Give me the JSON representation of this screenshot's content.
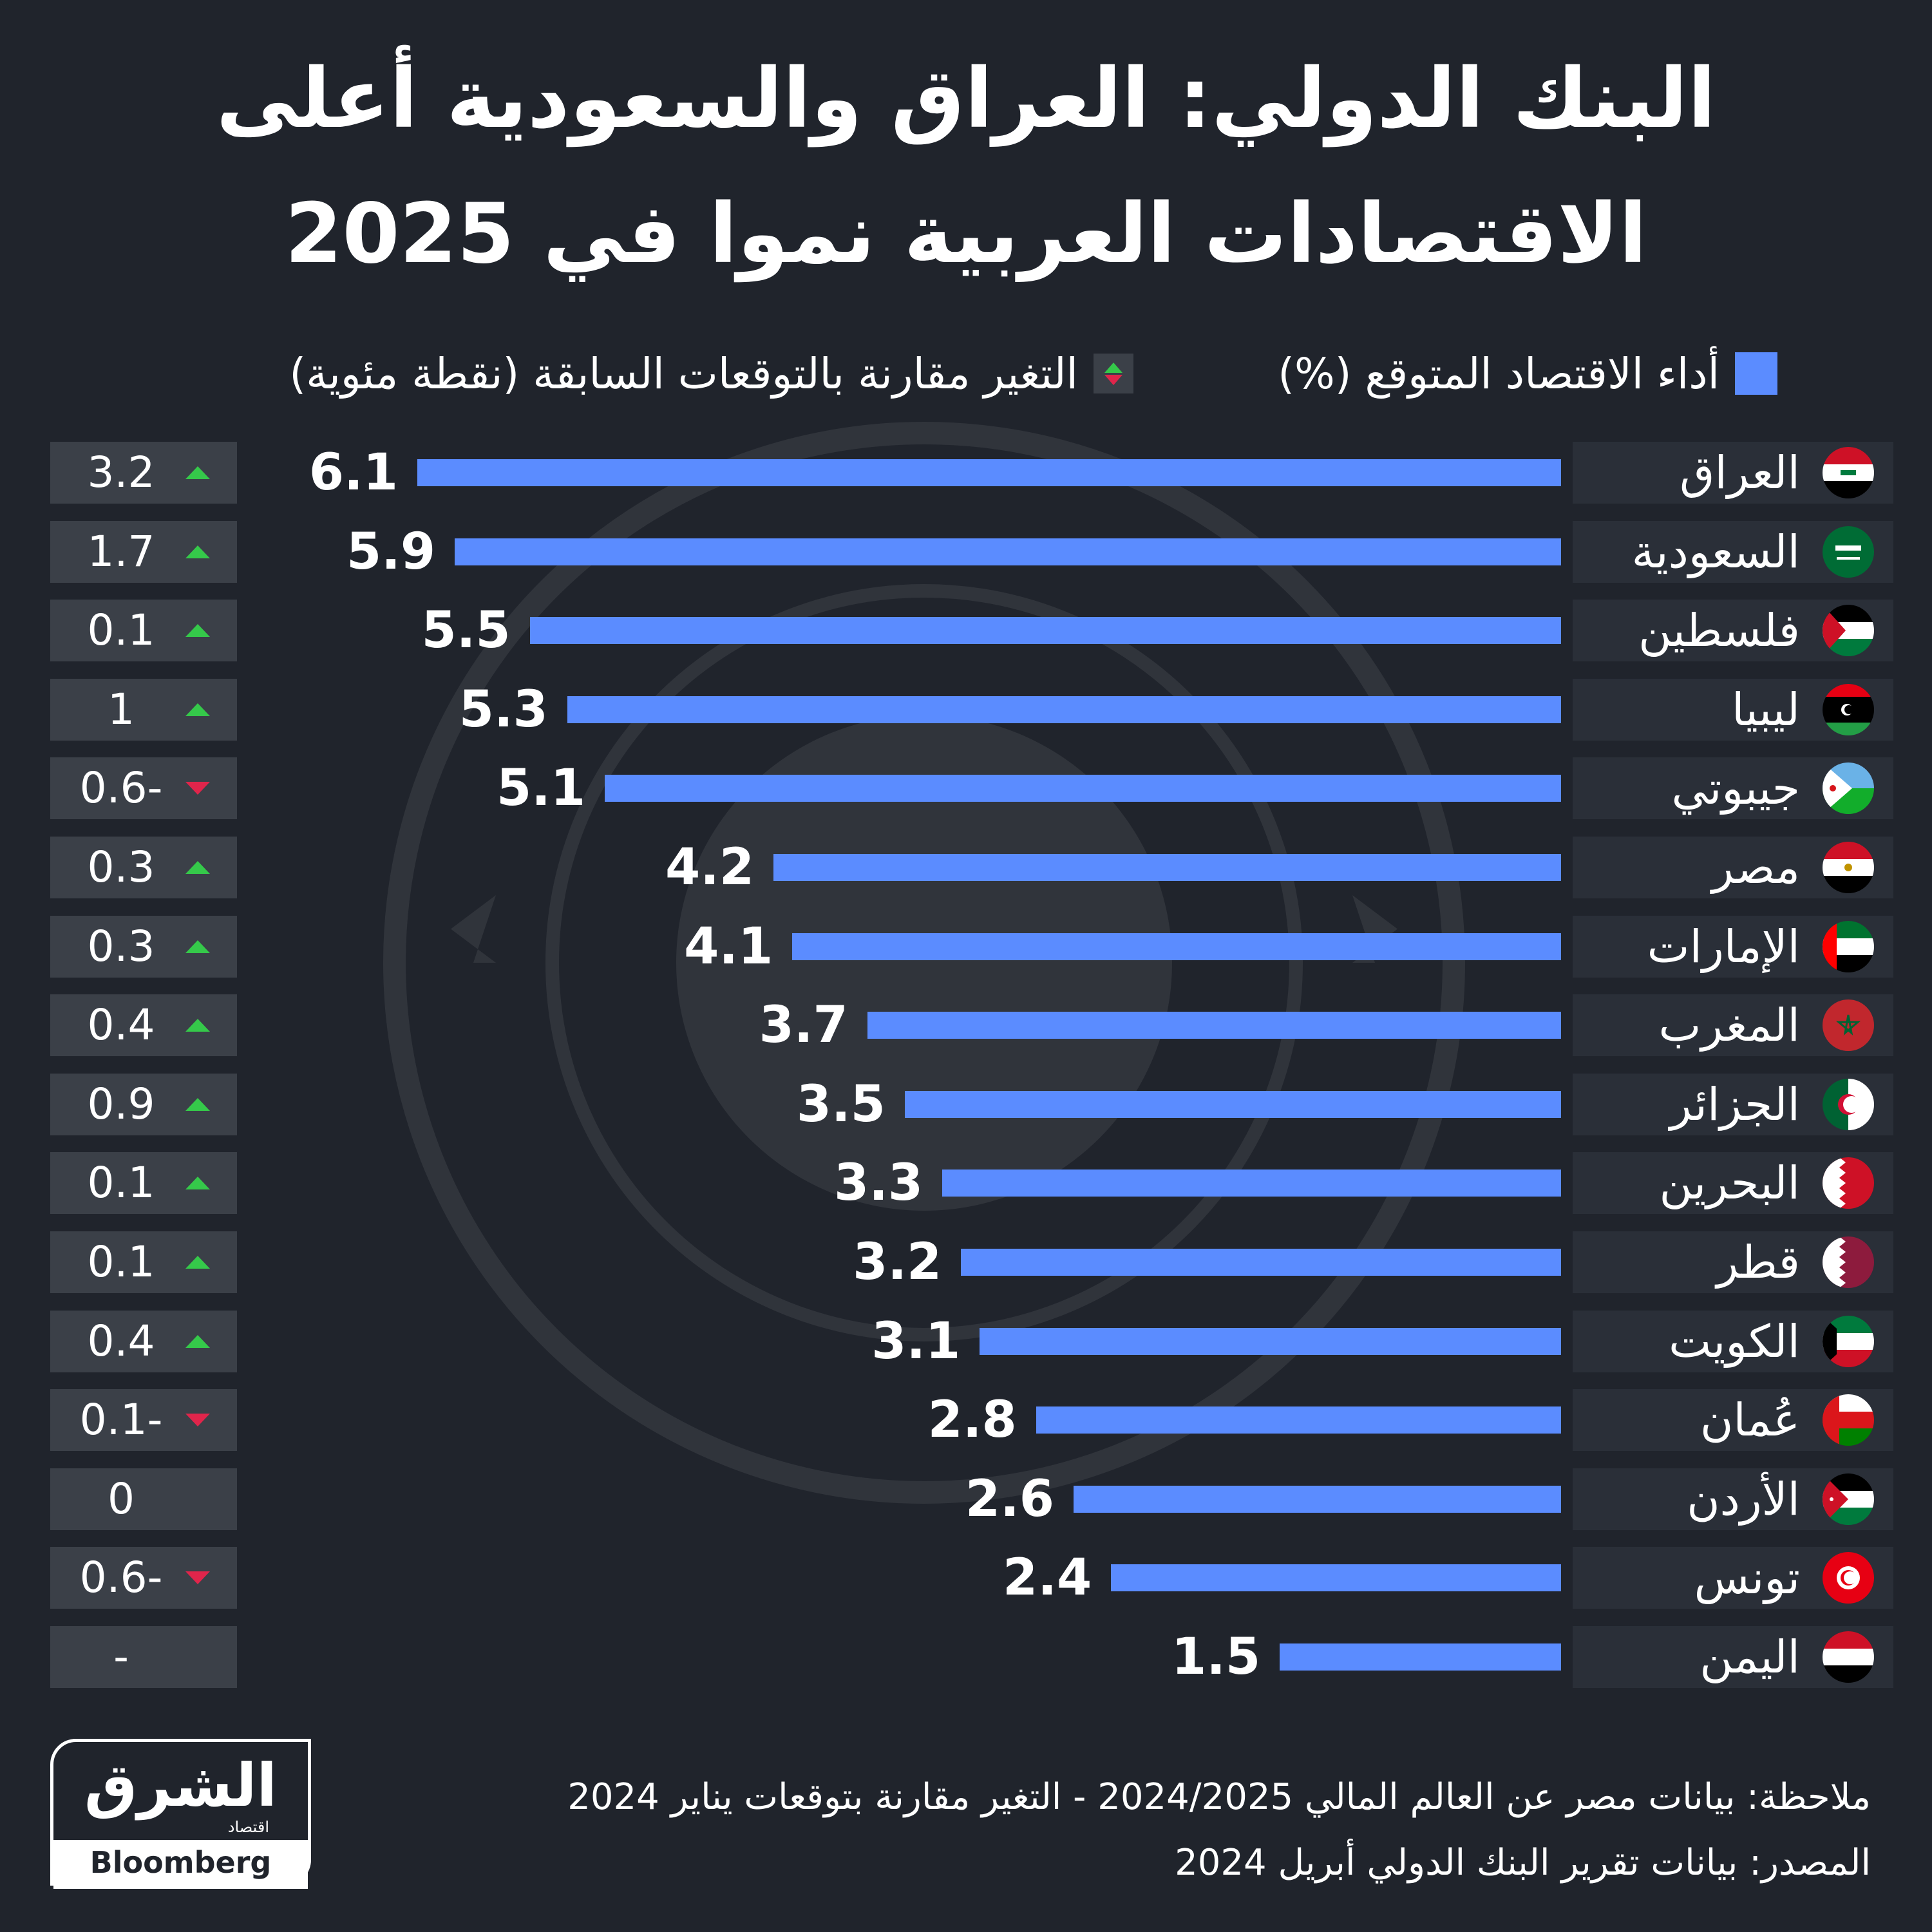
{
  "title": {
    "line1": "البنك الدولي: العراق والسعودية أعلى",
    "line2": "الاقتصادات العربية نموا في 2025"
  },
  "legend": {
    "growth_label": "أداء الاقتصاد المتوقع (%)",
    "change_label": "التغير مقارنة بالتوقعات السابقة (نقطة مئوية)",
    "bar_color": "#5b8cff",
    "up_color": "#35c94a",
    "down_color": "#e0254b"
  },
  "chart_data": {
    "type": "bar",
    "orientation": "horizontal",
    "categories": [
      "العراق",
      "السعودية",
      "فلسطين",
      "ليبيا",
      "جيبوتي",
      "مصر",
      "الإمارات",
      "المغرب",
      "الجزائر",
      "البحرين",
      "قطر",
      "الكويت",
      "عُمان",
      "الأردن",
      "تونس",
      "اليمن"
    ],
    "series": [
      {
        "name": "أداء الاقتصاد المتوقع (%)",
        "values": [
          6.1,
          5.9,
          5.5,
          5.3,
          5.1,
          4.2,
          4.1,
          3.7,
          3.5,
          3.3,
          3.2,
          3.1,
          2.8,
          2.6,
          2.4,
          1.5
        ]
      }
    ],
    "value_labels": [
      "6.1",
      "5.9",
      "5.5",
      "5.3",
      "5.1",
      "4.2",
      "4.1",
      "3.7",
      "3.5",
      "3.3",
      "3.2",
      "3.1",
      "2.8",
      "2.6",
      "2.4",
      "1.5"
    ],
    "change_labels": [
      "3.2",
      "1.7",
      "0.1",
      "1",
      "0.6-",
      "0.3",
      "0.3",
      "0.4",
      "0.9",
      "0.1",
      "0.1",
      "0.4",
      "0.1-",
      "0",
      "0.6-",
      "-"
    ],
    "change_direction": [
      "up",
      "up",
      "up",
      "up",
      "down",
      "up",
      "up",
      "up",
      "up",
      "up",
      "up",
      "up",
      "down",
      "none",
      "down",
      "none"
    ],
    "xlim": [
      0,
      6.1
    ]
  },
  "flags": [
    "iraq-flag",
    "saudi-flag",
    "palestine-flag",
    "libya-flag",
    "djibouti-flag",
    "egypt-flag",
    "uae-flag",
    "morocco-flag",
    "algeria-flag",
    "bahrain-flag",
    "qatar-flag",
    "kuwait-flag",
    "oman-flag",
    "jordan-flag",
    "tunisia-flag",
    "yemen-flag"
  ],
  "logo": {
    "main": "الشرق",
    "mini": "اقتصاد",
    "sub": "Bloomberg"
  },
  "notes": {
    "note1": "ملاحظة: بيانات مصر عن العالم المالي 2024/2025 - التغير مقارنة بتوقعات يناير 2024",
    "note2": "المصدر: بيانات تقرير البنك الدولي أبريل 2024"
  }
}
